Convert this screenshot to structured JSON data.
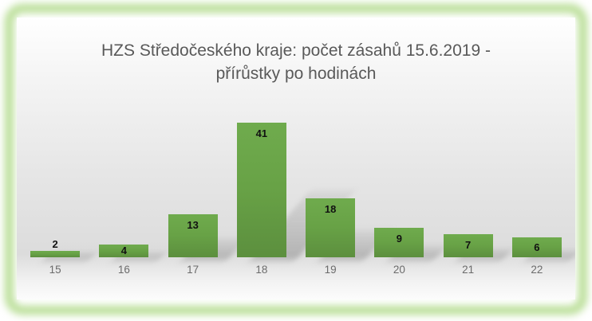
{
  "title": {
    "line1": "HZS Středočeského kraje: počet zásahů 15.6.2019 -",
    "line2": "přírůstky po hodinách",
    "color": "#595959"
  },
  "frame": {
    "glow_color": "#b7dd93",
    "page_background": "#ffffff"
  },
  "chart_data": {
    "type": "bar",
    "title": "HZS Středočeského kraje: počet zásahů 15.6.2019 - přírůstky po hodinách",
    "categories": [
      "15",
      "16",
      "17",
      "18",
      "19",
      "20",
      "21",
      "22"
    ],
    "values": [
      2,
      4,
      13,
      41,
      18,
      9,
      7,
      6
    ],
    "xlabel": "",
    "ylabel": "",
    "ylim": [
      0,
      45
    ],
    "grid": false,
    "legend": "none",
    "axes_visible": false,
    "data_labels": "inside-end",
    "bar_color_top": "#6fab4d",
    "bar_color_bottom": "#5c8f3e",
    "data_label_color": "#111111",
    "axis_label_color": "#6b6b6b",
    "background_gradient": [
      "#ffffff",
      "#dcdcdc",
      "#fcfcfc"
    ]
  }
}
